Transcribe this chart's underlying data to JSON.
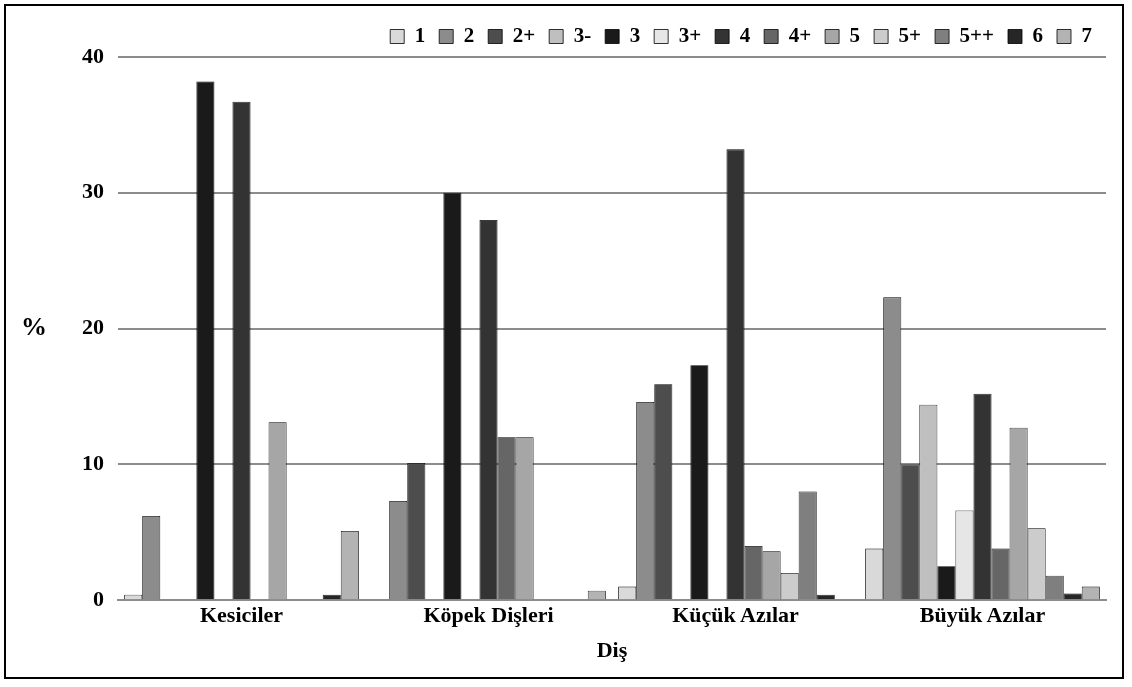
{
  "chart_data": {
    "type": "bar",
    "xlabel": "Diş",
    "ylabel": "%",
    "categories": [
      "Kesiciler",
      "Köpek Dişleri",
      "Küçük Azılar",
      "Büyük Azılar"
    ],
    "series": [
      {
        "name": "1",
        "color": "#d9d9d9",
        "values": [
          0.4,
          null,
          1.0,
          3.8
        ]
      },
      {
        "name": "2",
        "color": "#8c8c8c",
        "values": [
          6.2,
          7.3,
          14.6,
          22.3
        ]
      },
      {
        "name": "2+",
        "color": "#4d4d4d",
        "values": [
          null,
          10.1,
          15.9,
          10.0
        ]
      },
      {
        "name": "3-",
        "color": "#bfbfbf",
        "values": [
          null,
          null,
          null,
          14.4
        ]
      },
      {
        "name": "3",
        "color": "#1a1a1a",
        "values": [
          38.2,
          30.0,
          17.3,
          2.5
        ]
      },
      {
        "name": "3+",
        "color": "#e6e6e6",
        "values": [
          null,
          null,
          null,
          6.6
        ]
      },
      {
        "name": "4",
        "color": "#333333",
        "values": [
          36.7,
          28.0,
          33.2,
          15.2
        ]
      },
      {
        "name": "4+",
        "color": "#666666",
        "values": [
          null,
          12.0,
          4.0,
          3.8
        ]
      },
      {
        "name": "5",
        "color": "#a6a6a6",
        "values": [
          13.1,
          12.0,
          3.6,
          12.7
        ]
      },
      {
        "name": "5+",
        "color": "#cccccc",
        "values": [
          null,
          null,
          2.0,
          5.3
        ]
      },
      {
        "name": "5++",
        "color": "#7f7f7f",
        "values": [
          null,
          null,
          8.0,
          1.8
        ]
      },
      {
        "name": "6",
        "color": "#262626",
        "values": [
          0.4,
          null,
          0.4,
          0.5
        ]
      },
      {
        "name": "7",
        "color": "#b3b3b3",
        "values": [
          5.1,
          0.7,
          null,
          1.0
        ]
      }
    ],
    "ylim": [
      0,
      40
    ],
    "yticks": [
      0,
      10,
      20,
      30,
      40
    ],
    "grid": "y",
    "legend": "top"
  }
}
